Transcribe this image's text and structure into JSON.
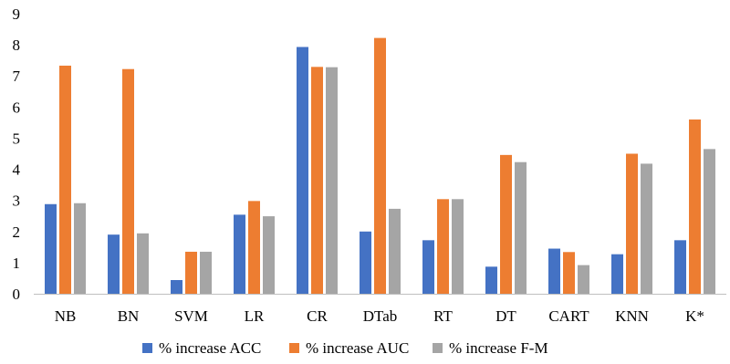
{
  "chart_data": {
    "type": "bar",
    "categories": [
      "NB",
      "BN",
      "SVM",
      "LR",
      "CR",
      "DTab",
      "RT",
      "DT",
      "CART",
      "KNN",
      "K*"
    ],
    "series": [
      {
        "name": "% increase ACC",
        "color": "#4472C4",
        "values": [
          2.88,
          1.9,
          0.44,
          2.54,
          7.93,
          2.0,
          1.72,
          0.87,
          1.45,
          1.27,
          1.72
        ]
      },
      {
        "name": "% increase AUC",
        "color": "#ED7D31",
        "values": [
          7.33,
          7.22,
          1.35,
          2.98,
          7.29,
          8.22,
          3.04,
          4.46,
          1.34,
          4.5,
          5.6
        ]
      },
      {
        "name": "% increase F-M",
        "color": "#A5A5A5",
        "values": [
          2.91,
          1.94,
          1.35,
          2.49,
          7.28,
          2.73,
          3.04,
          4.23,
          0.92,
          4.18,
          4.65
        ]
      }
    ],
    "ylim": [
      0,
      9
    ],
    "yticks": [
      0,
      1,
      2,
      3,
      4,
      5,
      6,
      7,
      8,
      9
    ],
    "grid": false,
    "legend_position": "bottom"
  }
}
